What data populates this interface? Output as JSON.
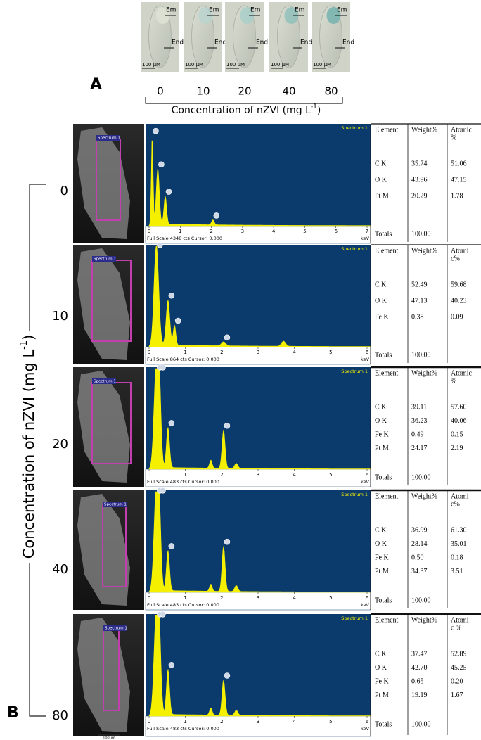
{
  "panel_a": {
    "label": "A",
    "images": [
      {
        "em": "Em",
        "end": "End",
        "scale": "100 µM",
        "concentration": "0"
      },
      {
        "em": "Em",
        "end": "End",
        "scale": "100 µM",
        "concentration": "10"
      },
      {
        "em": "Em",
        "end": "End",
        "scale": "100 µM",
        "concentration": "20"
      },
      {
        "em": "Em",
        "end": "End",
        "scale": "100 µM",
        "concentration": "40"
      },
      {
        "em": "Em",
        "end": "End",
        "scale": "100 µM",
        "concentration": "80"
      }
    ],
    "axis_label": {
      "text": "Concentration of  nZVI  (mg L",
      "sup": "-1",
      "end": ")"
    }
  },
  "panel_b": {
    "label": "B",
    "axis_label": {
      "text": "Concentration of  nZVI  (mg L",
      "sup": "-1",
      "end": ")"
    },
    "scale_bar": "100µm",
    "rows": [
      {
        "concentration": "0",
        "roi_label": "Spectrum 1",
        "spectrum_title": "Spectrum 1",
        "ticks": [
          0,
          1,
          2,
          3,
          4,
          5,
          6,
          7
        ],
        "unit": "keV",
        "footer": "Full Scale 4348 cts Cursor: 0.000",
        "table": {
          "header": [
            "Element",
            "Weight%",
            [
              "Atomic",
              "%"
            ]
          ],
          "rows": [
            [
              "C K",
              "35.74",
              "51.06"
            ],
            [
              "O K",
              "43.96",
              "47.15"
            ],
            [
              "Pt M",
              "20.29",
              "1.78"
            ]
          ],
          "totals": [
            "Totals",
            "100.00"
          ]
        }
      },
      {
        "concentration": "10",
        "roi_label": "Spectrum 1",
        "spectrum_title": "Spectrum 1",
        "ticks": [
          0,
          1,
          2,
          3,
          4,
          5,
          6
        ],
        "unit": "keV",
        "footer": "Full Scale 864 cts Cursor: 0.000",
        "table": {
          "header": [
            "Element",
            "Weight%",
            [
              "Atomi",
              "c%"
            ]
          ],
          "rows": [
            [
              "C K",
              "52.49",
              "59.68"
            ],
            [
              "O K",
              "47.13",
              "40.23"
            ],
            [
              "Fe K",
              "0.38",
              "0.09"
            ]
          ],
          "totals": [
            "Totals",
            "100.00"
          ]
        }
      },
      {
        "concentration": "20",
        "roi_label": "Spectrum 1",
        "spectrum_title": "Spectrum 1",
        "ticks": [
          0,
          1,
          2,
          3,
          4,
          5,
          6
        ],
        "unit": "keV",
        "footer": "Full Scale 483 cts Cursor: 0.000",
        "table": {
          "header": [
            "Element",
            "Weight%",
            [
              "Atomic",
              "%"
            ]
          ],
          "rows": [
            [
              "C K",
              "39.11",
              "57.60"
            ],
            [
              "O K",
              "36.23",
              "40.06"
            ],
            [
              "Fe K",
              "0.49",
              "0.15"
            ],
            [
              "Pt M",
              "24.17",
              "2.19"
            ]
          ],
          "totals": [
            "Totals",
            "100.00"
          ]
        }
      },
      {
        "concentration": "40",
        "roi_label": "Spectrum 1",
        "spectrum_title": "Spectrum 1",
        "ticks": [
          0,
          1,
          2,
          3,
          4,
          5,
          6
        ],
        "unit": "keV",
        "footer": "Full Scale 483 cts Cursor: 0.000",
        "table": {
          "header": [
            "Element",
            "Weight%",
            [
              "Atomi",
              "c%"
            ]
          ],
          "rows": [
            [
              "C K",
              "36.99",
              "61.30"
            ],
            [
              "O K",
              "28.14",
              "35.01"
            ],
            [
              "Fe K",
              "0.50",
              "0.18"
            ],
            [
              "Pt M",
              "34.37",
              "3.51"
            ]
          ],
          "totals": [
            "Totals",
            "100.00"
          ]
        }
      },
      {
        "concentration": "80",
        "roi_label": "Spectrum 1",
        "spectrum_title": "Spectrum 1",
        "ticks": [
          0,
          1,
          2,
          3,
          4,
          5,
          6
        ],
        "unit": "keV",
        "footer": "Full Scale 483 cts Cursor: 0.000",
        "table": {
          "header": [
            "Element",
            "Weight%",
            [
              "Atomi",
              "c %"
            ]
          ],
          "rows": [
            [
              "C K",
              "37.47",
              "52.89"
            ],
            [
              "O K",
              "42.70",
              "45.25"
            ],
            [
              "Fe K",
              "0.65",
              "0.20"
            ],
            [
              "Pt M",
              "19.19",
              "1.67"
            ]
          ],
          "totals": [
            "Totals",
            "100.00"
          ]
        }
      }
    ]
  }
}
